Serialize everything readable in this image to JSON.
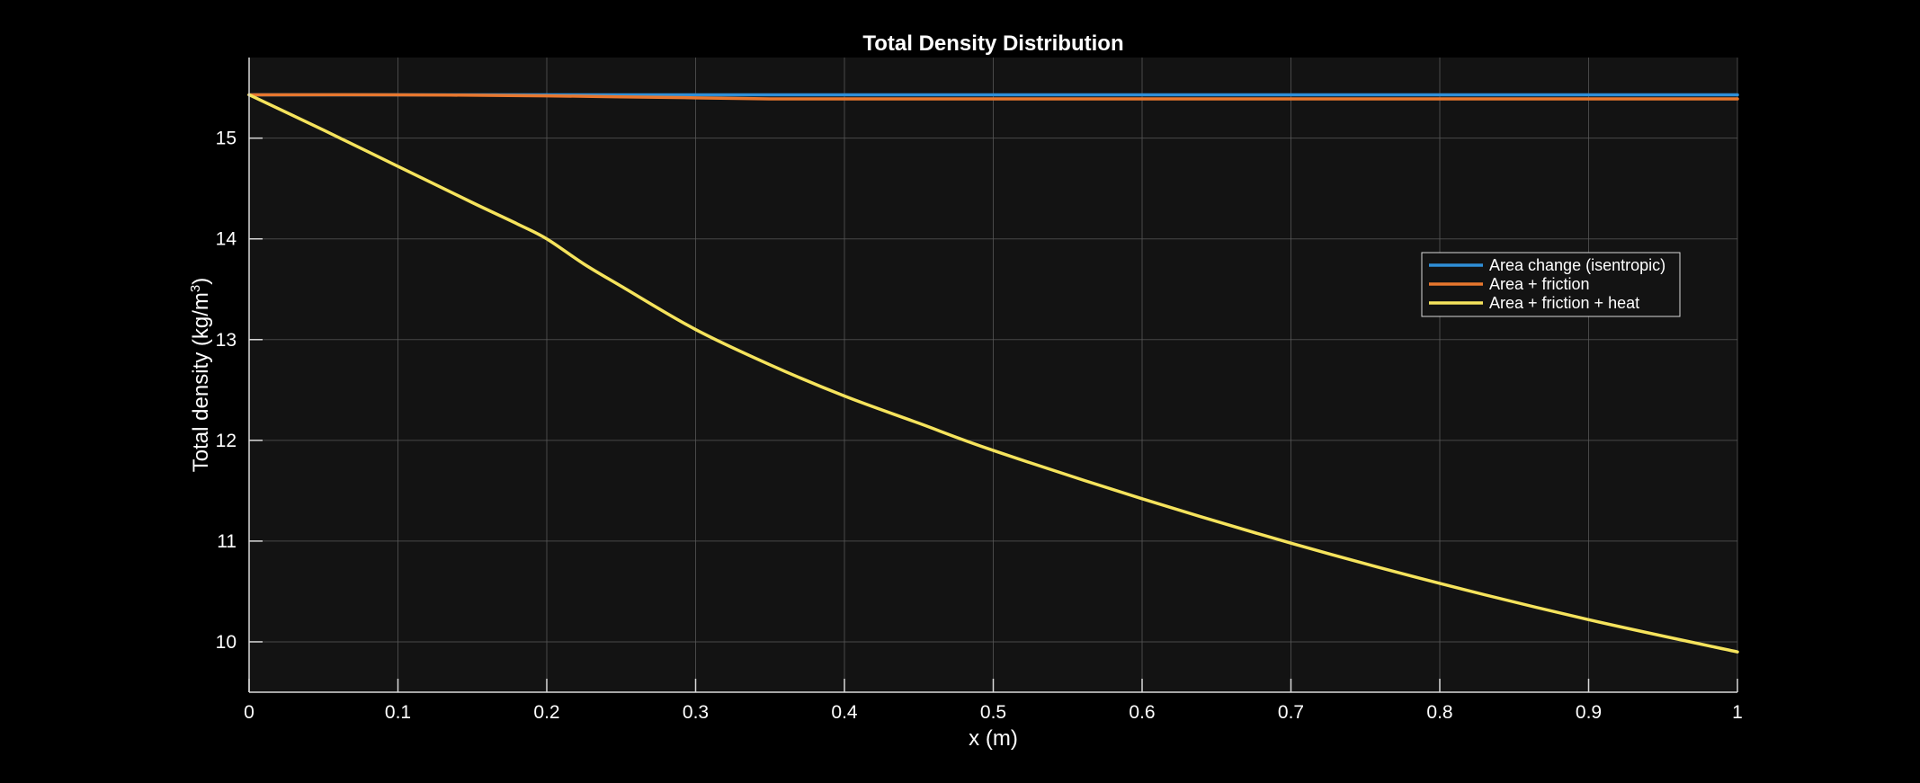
{
  "colors": {
    "background": "#000000",
    "plot_background": "#131313",
    "grid": "#5a5a5a",
    "axis": "#d9d9d9",
    "text": "#ffffff"
  },
  "chart_data": {
    "type": "line",
    "title": "Total Density Distribution",
    "xlabel": "x (m)",
    "ylabel": "Total  density  (kg/m",
    "ylabel_superscript": "3",
    "ylabel_suffix": ")",
    "xlim": [
      0,
      1
    ],
    "ylim": [
      9.5,
      15.8
    ],
    "xticks": [
      0,
      0.1,
      0.2,
      0.3,
      0.4,
      0.5,
      0.6,
      0.7,
      0.8,
      0.9,
      1
    ],
    "xtick_labels": [
      "0",
      "0.1",
      "0.2",
      "0.3",
      "0.4",
      "0.5",
      "0.6",
      "0.7",
      "0.8",
      "0.9",
      "1"
    ],
    "yticks": [
      10,
      11,
      12,
      13,
      14,
      15
    ],
    "ytick_labels": [
      "10",
      "11",
      "12",
      "13",
      "14",
      "15"
    ],
    "grid": true,
    "legend_position": "right",
    "series": [
      {
        "name": "Area change (isentropic)",
        "color": "#2f8fd8",
        "x": [
          0,
          0.1,
          0.2,
          0.3,
          0.4,
          0.5,
          0.6,
          0.7,
          0.8,
          0.9,
          1.0
        ],
        "y": [
          15.43,
          15.43,
          15.43,
          15.43,
          15.43,
          15.43,
          15.43,
          15.43,
          15.43,
          15.43,
          15.43
        ]
      },
      {
        "name": "Area + friction",
        "color": "#e8772e",
        "x": [
          0,
          0.1,
          0.2,
          0.25,
          0.3,
          0.35,
          0.4,
          0.5,
          0.6,
          0.7,
          0.8,
          0.9,
          1.0
        ],
        "y": [
          15.43,
          15.43,
          15.42,
          15.41,
          15.4,
          15.39,
          15.39,
          15.39,
          15.39,
          15.39,
          15.39,
          15.39,
          15.39
        ]
      },
      {
        "name": "Area + friction + heat",
        "color": "#f5e35c",
        "x": [
          0,
          0.05,
          0.1,
          0.15,
          0.18,
          0.2,
          0.225,
          0.25,
          0.3,
          0.35,
          0.4,
          0.45,
          0.5,
          0.6,
          0.7,
          0.8,
          0.9,
          1.0
        ],
        "y": [
          15.43,
          15.08,
          14.72,
          14.36,
          14.15,
          14.0,
          13.75,
          13.53,
          13.1,
          12.75,
          12.44,
          12.17,
          11.9,
          11.42,
          10.98,
          10.58,
          10.22,
          9.9
        ]
      }
    ]
  }
}
